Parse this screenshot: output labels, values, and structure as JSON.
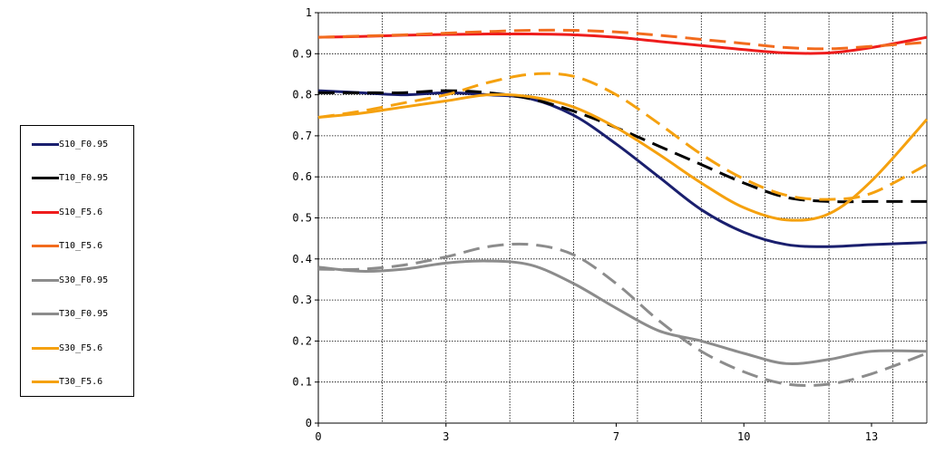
{
  "chart_data": {
    "type": "line",
    "title": "",
    "xlabel": "",
    "ylabel": "",
    "xlim": [
      0,
      14.3
    ],
    "ylim": [
      0,
      1
    ],
    "x_ticks": [
      0,
      3,
      7,
      10,
      13
    ],
    "x_tick_labels": [
      "0",
      "3",
      "7",
      "10",
      "13"
    ],
    "y_ticks": [
      0,
      0.1,
      0.2,
      0.3,
      0.4,
      0.5,
      0.6,
      0.7,
      0.8,
      0.9,
      1
    ],
    "y_tick_labels": [
      "0",
      "0.1",
      "0.2",
      "0.3",
      "0.4",
      "0.5",
      "0.6",
      "0.7",
      "0.8",
      "0.9",
      "1"
    ],
    "grid": true,
    "legend_position": "left",
    "series": [
      {
        "name": "S10_F0.95",
        "color": "#1a1f6e",
        "dash": "solid",
        "x": [
          0,
          1,
          2,
          3,
          4,
          5,
          6,
          7,
          8,
          9,
          10,
          11,
          12,
          13,
          14.3
        ],
        "y": [
          0.81,
          0.805,
          0.8,
          0.805,
          0.8,
          0.79,
          0.75,
          0.68,
          0.6,
          0.52,
          0.465,
          0.435,
          0.43,
          0.435,
          0.44
        ]
      },
      {
        "name": "T10_F0.95",
        "color": "#000000",
        "dash": "dashed",
        "x": [
          0,
          1,
          2,
          3,
          4,
          5,
          6,
          7,
          8,
          9,
          10,
          11,
          12,
          13,
          14.3
        ],
        "y": [
          0.805,
          0.805,
          0.805,
          0.81,
          0.805,
          0.79,
          0.76,
          0.72,
          0.675,
          0.63,
          0.585,
          0.55,
          0.54,
          0.54,
          0.54
        ]
      },
      {
        "name": "S10_F5.6",
        "color": "#ee1c1c",
        "dash": "solid",
        "x": [
          0,
          1,
          2,
          3,
          4,
          5,
          6,
          7,
          8,
          9,
          10,
          11,
          12,
          13,
          14.3
        ],
        "y": [
          0.94,
          0.942,
          0.945,
          0.947,
          0.948,
          0.948,
          0.946,
          0.94,
          0.93,
          0.92,
          0.91,
          0.902,
          0.902,
          0.915,
          0.94
        ]
      },
      {
        "name": "T10_F5.6",
        "color": "#f26b1d",
        "dash": "dashed",
        "x": [
          0,
          1,
          2,
          3,
          4,
          5,
          6,
          7,
          8,
          9,
          10,
          11,
          12,
          13,
          14.3
        ],
        "y": [
          0.94,
          0.943,
          0.946,
          0.95,
          0.954,
          0.957,
          0.957,
          0.953,
          0.945,
          0.935,
          0.925,
          0.915,
          0.912,
          0.918,
          0.928
        ]
      },
      {
        "name": "S30_F0.95",
        "color": "#8c8c8c",
        "dash": "solid",
        "x": [
          0,
          1,
          2,
          3,
          4,
          5,
          6,
          7,
          8,
          9,
          10,
          11,
          12,
          13,
          14.3
        ],
        "y": [
          0.38,
          0.37,
          0.375,
          0.39,
          0.395,
          0.385,
          0.34,
          0.28,
          0.225,
          0.2,
          0.17,
          0.145,
          0.155,
          0.175,
          0.175
        ]
      },
      {
        "name": "T30_F0.95",
        "color": "#8c8c8c",
        "dash": "dashed",
        "x": [
          0,
          1,
          2,
          3,
          4,
          5,
          6,
          7,
          8,
          9,
          10,
          11,
          12,
          13,
          14.3
        ],
        "y": [
          0.375,
          0.375,
          0.385,
          0.405,
          0.43,
          0.435,
          0.41,
          0.34,
          0.25,
          0.175,
          0.125,
          0.095,
          0.095,
          0.12,
          0.17
        ]
      },
      {
        "name": "S30_F5.6",
        "color": "#f5a10f",
        "dash": "solid",
        "x": [
          0,
          1,
          2,
          3,
          4,
          5,
          6,
          7,
          8,
          9,
          10,
          11,
          12,
          13,
          14.3
        ],
        "y": [
          0.745,
          0.755,
          0.77,
          0.785,
          0.8,
          0.795,
          0.77,
          0.72,
          0.655,
          0.585,
          0.525,
          0.495,
          0.51,
          0.59,
          0.74
        ]
      },
      {
        "name": "T30_F5.6",
        "color": "#f5a10f",
        "dash": "dashed",
        "x": [
          0,
          1,
          2,
          3,
          4,
          5,
          6,
          7,
          8,
          9,
          10,
          11,
          12,
          13,
          14.3
        ],
        "y": [
          0.745,
          0.76,
          0.78,
          0.8,
          0.83,
          0.85,
          0.845,
          0.8,
          0.73,
          0.655,
          0.595,
          0.555,
          0.545,
          0.56,
          0.63
        ]
      }
    ]
  }
}
